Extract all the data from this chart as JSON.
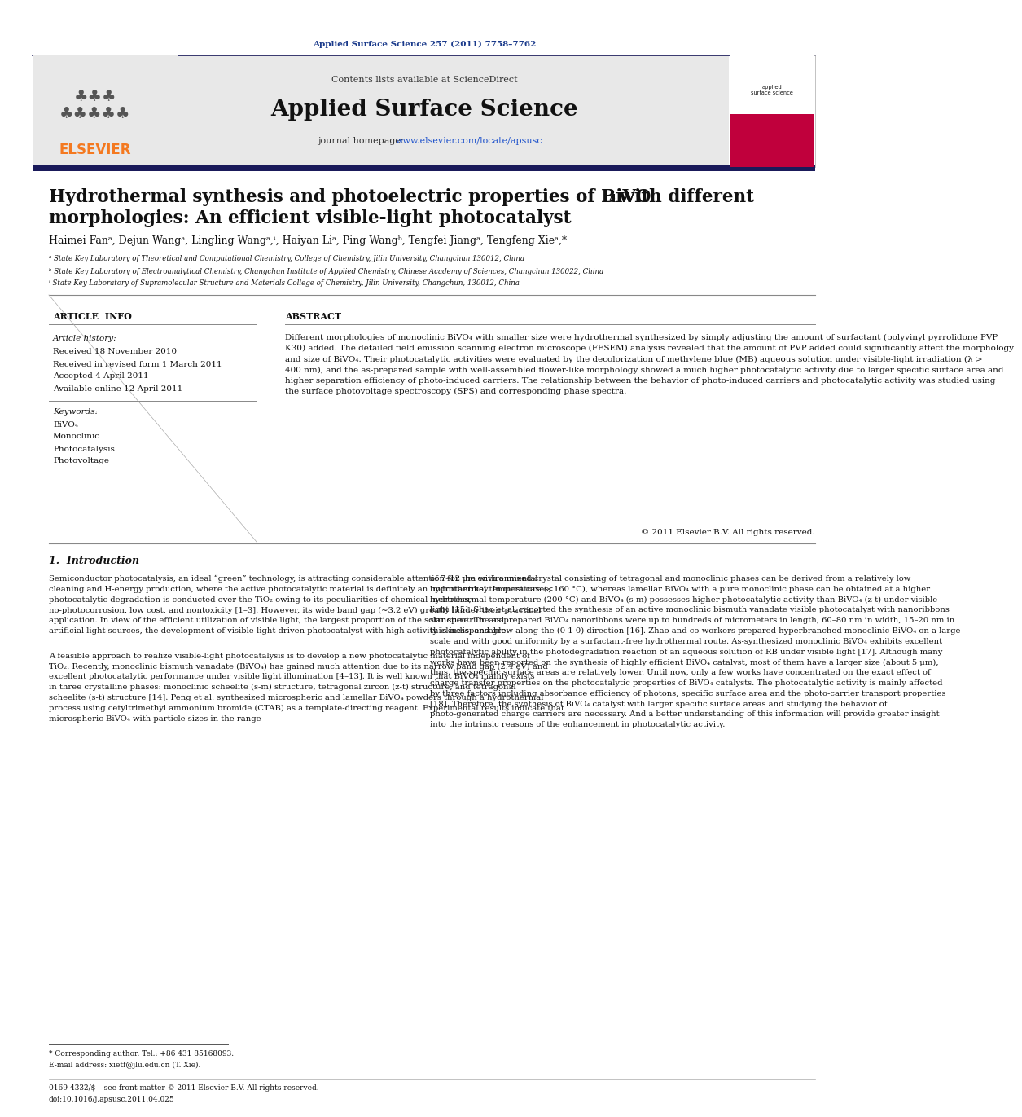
{
  "journal_ref": "Applied Surface Science 257 (2011) 7758–7762",
  "contents_line": "Contents lists available at ScienceDirect",
  "journal_name": "Applied Surface Science",
  "journal_homepage_prefix": "journal homepage: ",
  "journal_homepage_link": "www.elsevier.com/locate/apsusc",
  "title_line1": "Hydrothermal synthesis and photoelectric properties of BiVO",
  "title_sub4": "4",
  "title_line2": " with different",
  "title_line3": "morphologies: An efficient visible-light photocatalyst",
  "authors": "Haimei Fanᵃ, Dejun Wangᵃ, Lingling Wangᵃ,ᶤ, Haiyan Liᵃ, Ping Wangᵇ, Tengfei Jiangᵃ, Tengfeng Xieᵃ,*",
  "affil_a": "ᵃ State Key Laboratory of Theoretical and Computational Chemistry, College of Chemistry, Jilin University, Changchun 130012, China",
  "affil_b": "ᵇ State Key Laboratory of Electroanalytical Chemistry, Changchun Institute of Applied Chemistry, Chinese Academy of Sciences, Changchun 130022, China",
  "affil_c": "ᶤ State Key Laboratory of Supramolecular Structure and Materials College of Chemistry, Jilin University, Changchun, 130012, China",
  "article_info_header": "ARTICLE  INFO",
  "abstract_header": "ABSTRACT",
  "article_history_label": "Article history:",
  "received": "Received 18 November 2010",
  "revised": "Received in revised form 1 March 2011",
  "accepted": "Accepted 4 April 2011",
  "available": "Available online 12 April 2011",
  "keywords_label": "Keywords:",
  "keywords": [
    "BiVO₄",
    "Monoclinic",
    "Photocatalysis",
    "Photovoltage"
  ],
  "abstract_text": "Different morphologies of monoclinic BiVO₄ with smaller size were hydrothermal synthesized by simply adjusting the amount of surfactant (polyvinyl pyrrolidone PVP K30) added. The detailed field emission scanning electron microscope (FESEM) analysis revealed that the amount of PVP added could significantly affect the morphology and size of BiVO₄. Their photocatalytic activities were evaluated by the decolorization of methylene blue (MB) aqueous solution under visible-light irradiation (λ > 400 nm), and the as-prepared sample with well-assembled flower-like morphology showed a much higher photocatalytic activity due to larger specific surface area and higher separation efficiency of photo-induced carriers. The relationship between the behavior of photo-induced carriers and photocatalytic activity was studied using the surface photovoltage spectroscopy (SPS) and corresponding phase spectra.",
  "copyright": "© 2011 Elsevier B.V. All rights reserved.",
  "intro_header": "1.  Introduction",
  "intro_col1_p1": "Semiconductor photocatalysis, an ideal “green” technology, is attracting considerable attention for the environmental cleaning and H-energy production, where the active photocatalytic material is definitely an important key. In most cases, photocatalytic degradation is conducted over the TiO₂ owing to its peculiarities of chemical inertness, no-photocorrosion, low cost, and nontoxicity [1–3]. However, its wide band gap (~3.2 eV) greatly hinder their practical application. In view of the efficient utilization of visible light, the largest proportion of the solar spectrum and artificial light sources, the development of visible-light driven photocatalyst with high activity is indispensable.",
  "intro_col1_p2": "A feasible approach to realize visible-light photocatalysis is to develop a new photocatalytic material independent of TiO₂. Recently, monoclinic bismuth vanadate (BiVO₄) has gained much attention due to its narrow band gap (2.4 eV) and excellent photocatalytic performance under visible light illumination [4–13]. It is well known that BiVO₄ mainly exists in three crystalline phases: monoclinic scheelite (s-m) structure, tetragonal zircon (z-t) structure, and tetragonal scheelite (s-t) structure [14]. Peng et al. synthesized microspheric and lamellar BiVO₄ powders through a hydrothermal process using cetyltrimethyl ammonium bromide (CTAB) as a template-directing reagent. Experimental results indicate that microspheric BiVO₄ with particle sizes in the range",
  "intro_col2": "of 7–12 μm with a mixed crystal consisting of tetragonal and monoclinic phases can be derived from a relatively low hydrothermal temperature (<160 °C), whereas lamellar BiVO₄ with a pure monoclinic phase can be obtained at a higher hydrothermal temperature (200 °C) and BiVO₄ (s-m) possesses higher photocatalytic activity than BiVO₄ (z-t) under visible light [15]. Shao et al. reported the synthesis of an active monoclinic bismuth vanadate visible photocatalyst with nanoribbons structure. The as-prepared BiVO₄ nanoribbons were up to hundreds of micrometers in length, 60–80 nm in width, 15–20 nm in thickness, and grew along the (0 1 0) direction [16]. Zhao and co-workers prepared hyperbranched monoclinic BiVO₄ on a large scale and with good uniformity by a surfactant-free hydrothermal route. As-synthesized monoclinic BiVO₄ exhibits excellent photocatalytic ability in the photodegradation reaction of an aqueous solution of RB under visible light [17]. Although many works have been reported on the synthesis of highly efficient BiVO₄ catalyst, most of them have a larger size (about 5 μm), thus, the specific surface areas are relatively lower. Until now, only a few works have concentrated on the exact effect of charge transfer properties on the photocatalytic properties of BiVO₄ catalysts. The photocatalytic activity is mainly affected by three factors including absorbance efficiency of photons, specific surface area and the photo-carrier transport properties [18]. Therefore, the synthesis of BiVO₄ catalyst with larger specific surface areas and studying the behavior of photo-generated charge carriers are necessary. And a better understanding of this information will provide greater insight into the intrinsic reasons of the enhancement in photocatalytic activity.",
  "footnote_star": "* Corresponding author. Tel.: +86 431 85168093.",
  "footnote_email": "E-mail address: xietf@jlu.edu.cn (T. Xie).",
  "footer_issn": "0169-4332/$ – see front matter © 2011 Elsevier B.V. All rights reserved.",
  "footer_doi": "doi:10.1016/j.apsusc.2011.04.025",
  "bg_color": "#ffffff",
  "header_color": "#1a3a8b",
  "link_color": "#2255cc",
  "elsevier_orange": "#f47920",
  "separator_dark": "#1a1a5a",
  "gray_bg": "#e8e8e8"
}
